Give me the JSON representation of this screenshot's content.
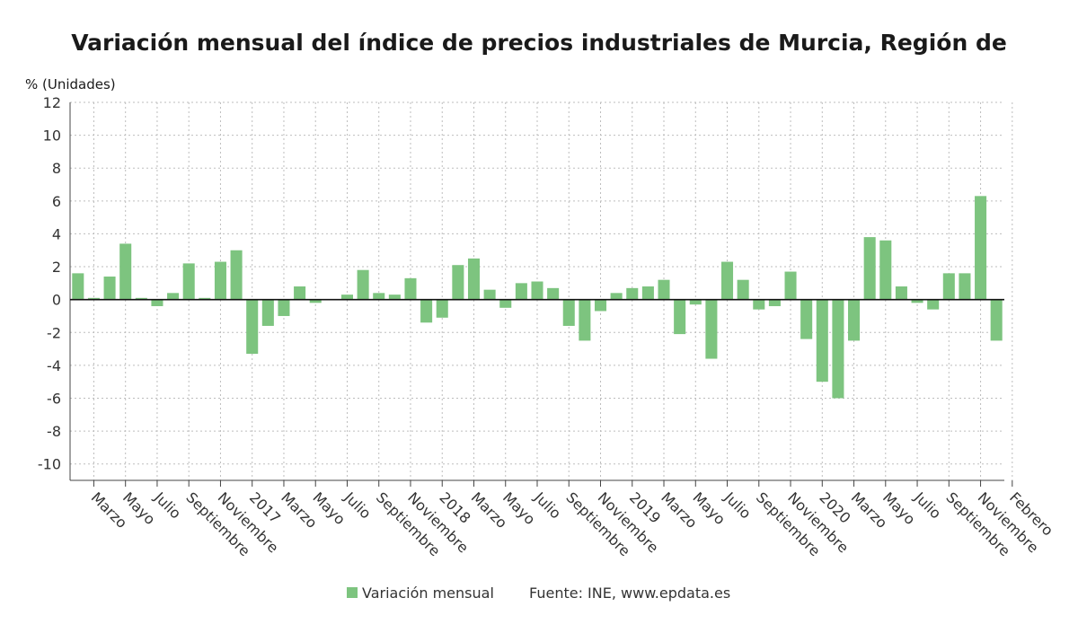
{
  "chart_data": {
    "type": "bar",
    "title": "Variación mensual del índice de precios industriales de Murcia, Región de",
    "ylabel": "% (Unidades)",
    "ylim": [
      -11,
      12
    ],
    "yticks": [
      12,
      10,
      8,
      6,
      4,
      2,
      0,
      -2,
      -4,
      -6,
      -8,
      -10
    ],
    "grid": true,
    "legend_position": "bottom",
    "bar_color": "#7dc47f",
    "x_tick_labels": [
      "Marzo",
      "Mayo",
      "Julio",
      "Septiembre",
      "Noviembre",
      "2017",
      "Marzo",
      "Mayo",
      "Julio",
      "Septiembre",
      "Noviembre",
      "2018",
      "Marzo",
      "Mayo",
      "Julio",
      "Septiembre",
      "Noviembre",
      "2019",
      "Marzo",
      "Mayo",
      "Julio",
      "Septiembre",
      "Noviembre",
      "2020",
      "Marzo",
      "Mayo",
      "Julio",
      "Septiembre",
      "Noviembre",
      "Febrero"
    ],
    "series": [
      {
        "name": "Variación mensual",
        "values": [
          1.6,
          0.1,
          1.4,
          3.4,
          0.1,
          -0.4,
          0.4,
          2.2,
          0.1,
          2.3,
          3.0,
          -3.3,
          -1.6,
          -1.0,
          0.8,
          -0.2,
          0.0,
          0.3,
          1.8,
          0.4,
          0.3,
          1.3,
          -1.4,
          -1.1,
          2.1,
          2.5,
          0.6,
          -0.5,
          1.0,
          1.1,
          0.7,
          -1.6,
          -2.5,
          -0.7,
          0.4,
          0.7,
          0.8,
          1.2,
          -2.1,
          -0.3,
          -3.6,
          2.3,
          1.2,
          -0.6,
          -0.4,
          1.7,
          -2.4,
          -5.0,
          -6.0,
          -2.5,
          3.8,
          3.6,
          0.8,
          -0.2,
          -0.6,
          1.6,
          1.6,
          6.3,
          -2.5
        ]
      }
    ]
  },
  "legend": {
    "label": "Variación mensual"
  },
  "source": "Fuente: INE, www.epdata.es"
}
